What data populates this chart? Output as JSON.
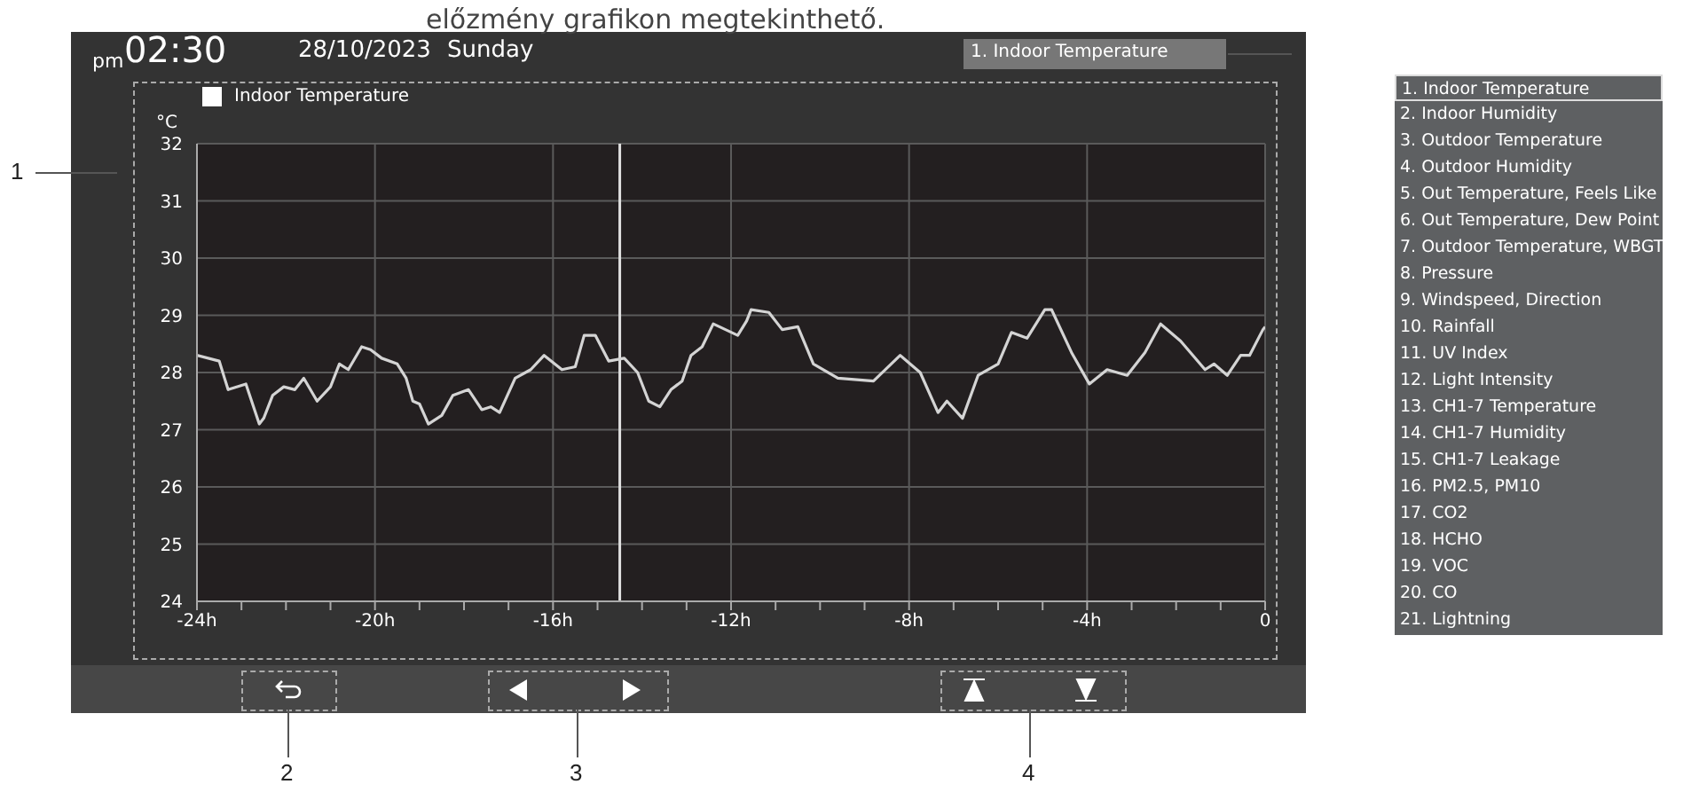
{
  "chart_data": {
    "type": "line",
    "ylabel": "°C",
    "legend": "top left",
    "grid": true,
    "marker": "none",
    "line_style": "solid",
    "annotations": [
      "előzmény grafikon megtekinthető.",
      "pm",
      "02:30",
      "28/10/2023",
      "Sunday",
      "1. Indoor Temperature",
      "1",
      "2",
      "3",
      "4",
      "1. Indoor Temperature",
      "2. Indoor Humidity",
      "3. Outdoor Temperature",
      "4. Outdoor Humidity",
      "5. Out Temperature, Feels Like",
      "6. Out Temperature, Dew Point",
      "7. Outdoor Temperature, WBGT",
      "8. Pressure",
      "9. Windspeed, Direction",
      "10. Rainfall",
      "11. UV Index",
      "12. Light Intensity",
      "13. CH1-7 Temperature",
      "14. CH1-7 Humidity",
      "15. CH1-7 Leakage",
      "16. PM2.5, PM10",
      "17. CO2",
      "18. HCHO",
      "19. VOC",
      "20. CO",
      "21. Lightning"
    ],
    "xlim": [
      -24,
      0
    ],
    "xticks": [
      {
        "value": -24,
        "label": "-24h"
      },
      {
        "value": -23,
        "label": null
      },
      {
        "value": -22,
        "label": null
      },
      {
        "value": -21,
        "label": null
      },
      {
        "value": -20,
        "label": "-20h"
      },
      {
        "value": -19,
        "label": null
      },
      {
        "value": -18,
        "label": null
      },
      {
        "value": -17,
        "label": null
      },
      {
        "value": -16,
        "label": "-16h"
      },
      {
        "value": -15,
        "label": null
      },
      {
        "value": -14,
        "label": null
      },
      {
        "value": -13,
        "label": null
      },
      {
        "value": -12,
        "label": "-12h"
      },
      {
        "value": -11,
        "label": null
      },
      {
        "value": -10,
        "label": null
      },
      {
        "value": -9,
        "label": null
      },
      {
        "value": -8,
        "label": "-8h"
      },
      {
        "value": -7,
        "label": null
      },
      {
        "value": -6,
        "label": null
      },
      {
        "value": -5,
        "label": null
      },
      {
        "value": -4,
        "label": "-4h"
      },
      {
        "value": -3,
        "label": null
      },
      {
        "value": -2,
        "label": null
      },
      {
        "value": -1,
        "label": null
      },
      0
    ],
    "ylim": [
      24,
      32
    ],
    "yticks": [
      24,
      25,
      26,
      27,
      28,
      29,
      30,
      31,
      32
    ],
    "ref_lines": [
      {
        "axis": "x",
        "value": -14.5,
        "color": "#e0e0e0"
      }
    ],
    "series": [
      {
        "name": "Indoor Temperature",
        "color": "#d4d4d4",
        "x": [
          -24,
          -23.5,
          -23.3,
          -22.9,
          -22.6,
          -22.5,
          -22.3,
          -22.05,
          -21.8,
          -21.6,
          -21.3,
          -21,
          -20.8,
          -20.6,
          -20.3,
          -20.1,
          -19.85,
          -19.5,
          -19.3,
          -19.15,
          -19,
          -18.8,
          -18.5,
          -18.25,
          -17.9,
          -17.6,
          -17.4,
          -17.2,
          -16.85,
          -16.5,
          -16.2,
          -15.8,
          -15.5,
          -15.3,
          -15.05,
          -14.75,
          -14.4,
          -14.1,
          -13.85,
          -13.6,
          -13.35,
          -13.1,
          -12.9,
          -12.65,
          -12.4,
          -11.85,
          -11.65,
          -11.55,
          -11.15,
          -10.85,
          -10.5,
          -10.15,
          -9.6,
          -8.8,
          -8.2,
          -7.75,
          -7.35,
          -7.15,
          -6.8,
          -6.45,
          -6,
          -5.7,
          -5.35,
          -4.95,
          -4.8,
          -4.35,
          -3.95,
          -3.55,
          -3.1,
          -2.7,
          -2.35,
          -1.9,
          -1.35,
          -1.15,
          -0.85,
          -0.55,
          -0.35,
          -0.05,
          0
        ],
        "values": [
          28.3,
          28.2,
          27.7,
          27.8,
          27.1,
          27.2,
          27.6,
          27.75,
          27.7,
          27.9,
          27.5,
          27.75,
          28.15,
          28.05,
          28.45,
          28.4,
          28.25,
          28.15,
          27.9,
          27.5,
          27.45,
          27.1,
          27.25,
          27.6,
          27.7,
          27.35,
          27.4,
          27.3,
          27.9,
          28.05,
          28.3,
          28.05,
          28.1,
          28.65,
          28.65,
          28.2,
          28.25,
          28,
          27.5,
          27.4,
          27.7,
          27.85,
          28.3,
          28.45,
          28.85,
          28.65,
          28.9,
          29.1,
          29.05,
          28.75,
          28.8,
          28.15,
          27.9,
          27.85,
          28.3,
          28,
          27.3,
          27.5,
          27.2,
          27.95,
          28.15,
          28.7,
          28.6,
          29.1,
          29.1,
          28.35,
          27.8,
          28.05,
          27.95,
          28.35,
          28.85,
          28.55,
          28.05,
          28.15,
          27.95,
          28.3,
          28.3,
          28.75,
          28.8
        ]
      }
    ]
  }
}
